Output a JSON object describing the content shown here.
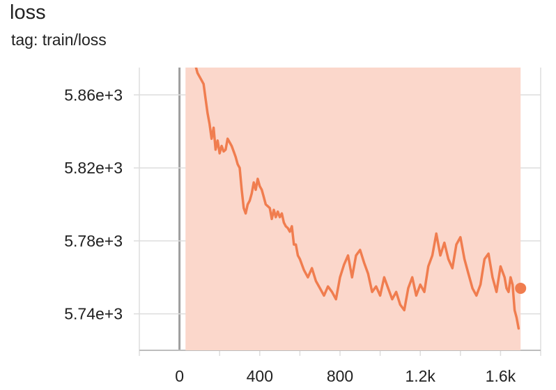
{
  "card": {
    "title": "loss",
    "tag": "tag: train/loss"
  },
  "colors": {
    "smoothed_line": "#f07d4f",
    "raw_band": "#fbd7cb",
    "grid": "#dddddd",
    "zero_axis": "#9e9e9e",
    "marker": "#f07d4f"
  },
  "chart_data": {
    "type": "line",
    "title": "loss",
    "subtitle": "tag: train/loss",
    "xlabel": "",
    "ylabel": "",
    "xlim": [
      -200,
      1800
    ],
    "ylim": [
      5720,
      5875
    ],
    "x_ticks": [
      0,
      400,
      800,
      1200,
      1600
    ],
    "x_tick_labels": [
      "0",
      "400",
      "800",
      "1.2k",
      "1.6k"
    ],
    "y_ticks": [
      5740,
      5780,
      5820,
      5860
    ],
    "y_tick_labels": [
      "5.74e+3",
      "5.78e+3",
      "5.82e+3",
      "5.86e+3"
    ],
    "grid": true,
    "series": [
      {
        "kind": "smoothed",
        "x": [
          70,
          90,
          110,
          120,
          130,
          140,
          150,
          160,
          170,
          180,
          190,
          200,
          210,
          220,
          230,
          240,
          250,
          260,
          270,
          280,
          290,
          300,
          310,
          320,
          330,
          340,
          350,
          360,
          370,
          380,
          390,
          400,
          410,
          420,
          430,
          440,
          450,
          460,
          470,
          480,
          490,
          500,
          510,
          520,
          530,
          540,
          550,
          560,
          570,
          580,
          590,
          600,
          620,
          640,
          660,
          680,
          700,
          720,
          740,
          760,
          780,
          800,
          820,
          840,
          860,
          880,
          900,
          920,
          940,
          960,
          980,
          1000,
          1020,
          1040,
          1060,
          1080,
          1100,
          1120,
          1140,
          1160,
          1180,
          1200,
          1220,
          1240,
          1260,
          1280,
          1300,
          1320,
          1340,
          1360,
          1380,
          1400,
          1420,
          1440,
          1460,
          1480,
          1500,
          1520,
          1540,
          1560,
          1580,
          1600,
          1620,
          1630,
          1640,
          1650,
          1660,
          1670,
          1680,
          1690
        ],
        "y": [
          5880,
          5872,
          5868,
          5866,
          5858,
          5850,
          5844,
          5836,
          5842,
          5830,
          5835,
          5828,
          5832,
          5829,
          5830,
          5836,
          5834,
          5832,
          5829,
          5826,
          5822,
          5820,
          5808,
          5798,
          5795,
          5800,
          5802,
          5806,
          5812,
          5808,
          5814,
          5810,
          5808,
          5804,
          5800,
          5799,
          5798,
          5792,
          5797,
          5793,
          5796,
          5793,
          5795,
          5790,
          5788,
          5787,
          5785,
          5788,
          5778,
          5778,
          5772,
          5770,
          5764,
          5760,
          5765,
          5758,
          5754,
          5750,
          5755,
          5752,
          5748,
          5760,
          5767,
          5772,
          5760,
          5772,
          5775,
          5768,
          5762,
          5752,
          5755,
          5750,
          5760,
          5754,
          5748,
          5752,
          5745,
          5742,
          5754,
          5760,
          5750,
          5756,
          5752,
          5766,
          5772,
          5784,
          5772,
          5779,
          5770,
          5765,
          5778,
          5782,
          5770,
          5762,
          5754,
          5750,
          5756,
          5770,
          5773,
          5760,
          5752,
          5766,
          5760,
          5754,
          5752,
          5760,
          5756,
          5742,
          5738,
          5732
        ]
      },
      {
        "kind": "raw",
        "x": [
          30,
          1700
        ],
        "y_range_observed": [
          5720,
          5875
        ]
      }
    ],
    "last_point": {
      "x": 1700,
      "y": 5754
    }
  }
}
